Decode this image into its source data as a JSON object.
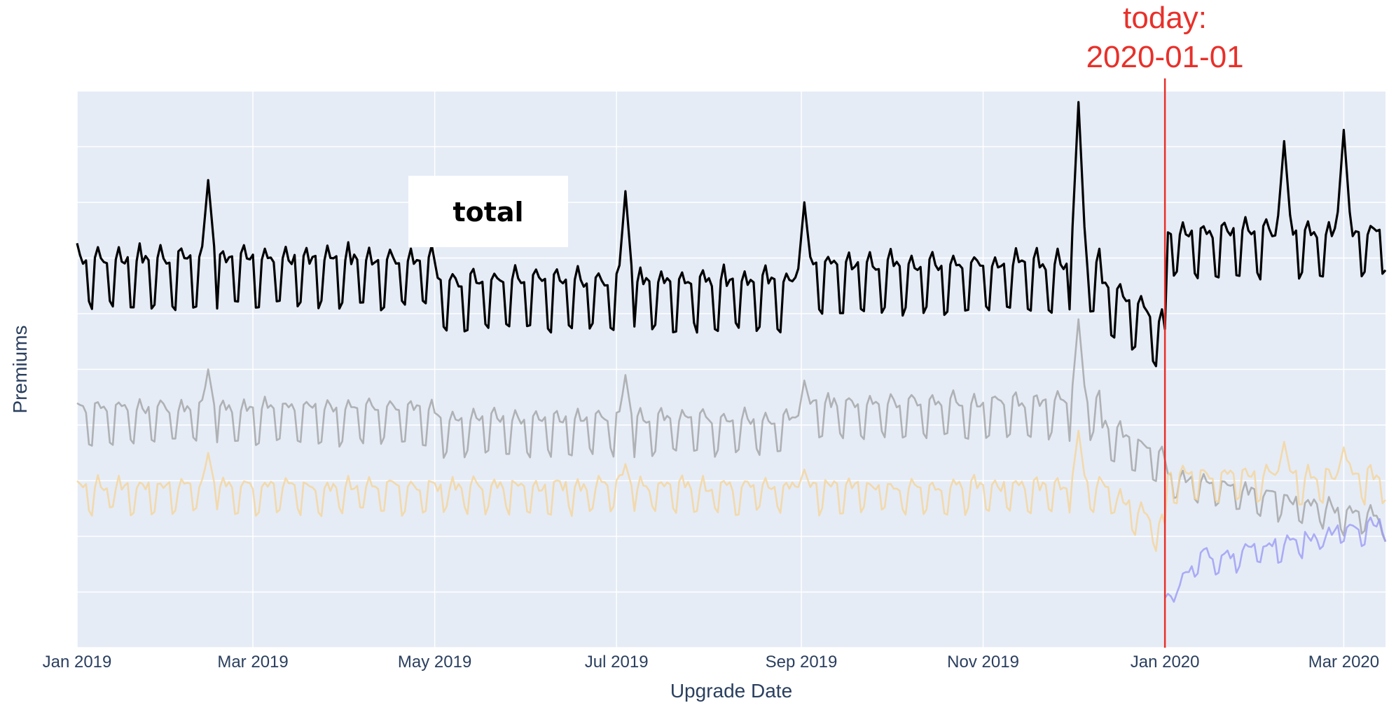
{
  "chart_data": {
    "type": "line",
    "title": "",
    "xlabel": "Upgrade Date",
    "ylabel": "Premiums",
    "x_tick_labels": [
      "Jan 2019",
      "Mar 2019",
      "May 2019",
      "Jul 2019",
      "Sep 2019",
      "Nov 2019",
      "Jan 2020",
      "Mar 2020"
    ],
    "x_ticks": [
      "2019-01-01",
      "2019-03-01",
      "2019-05-01",
      "2019-07-01",
      "2019-09-01",
      "2019-11-01",
      "2020-01-01",
      "2020-03-01"
    ],
    "xlim": [
      "2019-01-01",
      "2020-03-15"
    ],
    "ylim": [
      0,
      10
    ],
    "y_tick_labels_visible": false,
    "grid": true,
    "plot_background": "#e5ecf6",
    "annotation": {
      "date": "2020-01-01",
      "line1": "today:",
      "line2": "2020-01-01",
      "color": "#e8302a"
    },
    "legend_label": "total",
    "series": [
      {
        "color": "#000000",
        "opacity": 1.0,
        "start": "2019-01-01",
        "end": "2020-03-15",
        "segments": [
          {
            "from": "2019-01-01",
            "to": "2019-05-01",
            "base": 6.7,
            "amp": 0.55,
            "trend": 0.0
          },
          {
            "from": "2019-05-01",
            "to": "2019-09-01",
            "base": 6.3,
            "amp": 0.55,
            "trend": 0.0
          },
          {
            "from": "2019-09-01",
            "to": "2019-12-10",
            "base": 6.6,
            "amp": 0.55,
            "trend": 0.0
          },
          {
            "from": "2019-12-10",
            "to": "2020-01-01",
            "base": 6.4,
            "amp": 0.55,
            "trend": -0.9
          },
          {
            "from": "2020-01-01",
            "to": "2020-03-15",
            "base": 7.2,
            "amp": 0.5,
            "trend": 0.0
          }
        ],
        "spikes": [
          {
            "date": "2019-02-14",
            "value": 8.4
          },
          {
            "date": "2019-07-04",
            "value": 8.2
          },
          {
            "date": "2019-09-02",
            "value": 8.0
          },
          {
            "date": "2019-12-03",
            "value": 9.8
          },
          {
            "date": "2020-02-10",
            "value": 9.1
          },
          {
            "date": "2020-03-01",
            "value": 9.3
          }
        ]
      },
      {
        "color": "#999999",
        "opacity": 0.7,
        "start": "2019-01-01",
        "end": "2020-03-15",
        "segments": [
          {
            "from": "2019-01-01",
            "to": "2019-05-01",
            "base": 4.1,
            "amp": 0.4,
            "trend": 0.0
          },
          {
            "from": "2019-05-01",
            "to": "2019-09-01",
            "base": 3.9,
            "amp": 0.4,
            "trend": 0.0
          },
          {
            "from": "2019-09-01",
            "to": "2019-12-10",
            "base": 4.2,
            "amp": 0.4,
            "trend": 0.0
          },
          {
            "from": "2019-12-10",
            "to": "2020-01-01",
            "base": 3.9,
            "amp": 0.35,
            "trend": -0.7
          },
          {
            "from": "2020-01-01",
            "to": "2020-03-15",
            "base": 3.0,
            "amp": 0.25,
            "trend": -0.8
          }
        ],
        "spikes": [
          {
            "date": "2019-02-14",
            "value": 5.0
          },
          {
            "date": "2019-07-04",
            "value": 4.9
          },
          {
            "date": "2019-09-02",
            "value": 4.8
          },
          {
            "date": "2019-12-03",
            "value": 5.9
          }
        ]
      },
      {
        "color": "#f5d49a",
        "opacity": 0.8,
        "start": "2019-01-01",
        "end": "2020-03-15",
        "segments": [
          {
            "from": "2019-01-01",
            "to": "2019-12-15",
            "base": 2.75,
            "amp": 0.3,
            "trend": 0.0
          },
          {
            "from": "2019-12-15",
            "to": "2020-01-01",
            "base": 2.6,
            "amp": 0.3,
            "trend": -0.6
          },
          {
            "from": "2020-01-01",
            "to": "2020-03-15",
            "base": 2.95,
            "amp": 0.3,
            "trend": 0.0
          }
        ],
        "spikes": [
          {
            "date": "2019-02-14",
            "value": 3.5
          },
          {
            "date": "2019-07-04",
            "value": 3.3
          },
          {
            "date": "2019-09-02",
            "value": 3.2
          },
          {
            "date": "2019-12-03",
            "value": 3.9
          },
          {
            "date": "2020-02-10",
            "value": 3.7
          },
          {
            "date": "2020-03-01",
            "value": 3.6
          }
        ]
      },
      {
        "color": "#9b9bf5",
        "opacity": 0.8,
        "start": "2020-01-01",
        "end": "2020-03-15",
        "segments": [
          {
            "from": "2020-01-01",
            "to": "2020-01-15",
            "base": 0.8,
            "amp": 0.15,
            "trend": 0.9
          },
          {
            "from": "2020-01-15",
            "to": "2020-03-15",
            "base": 1.5,
            "amp": 0.2,
            "trend": 0.7
          }
        ],
        "spikes": []
      }
    ]
  }
}
